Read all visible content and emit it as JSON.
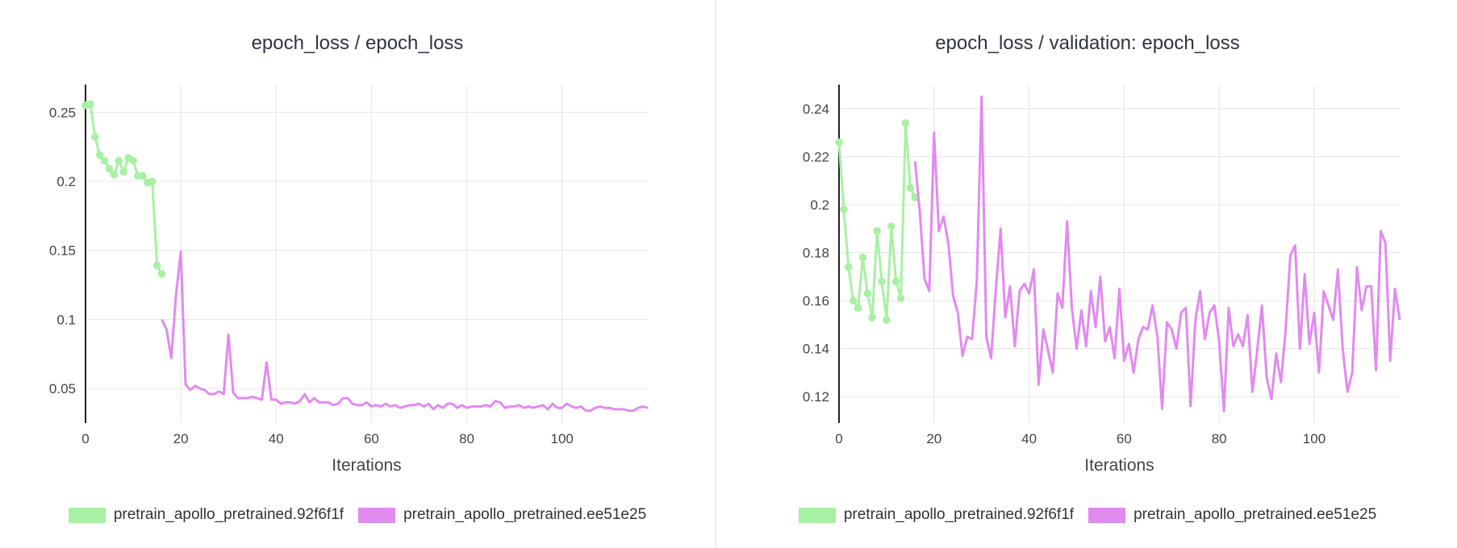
{
  "chart_data": [
    {
      "type": "line",
      "title": "epoch_loss / epoch_loss",
      "xlabel": "Iterations",
      "ylabel": "",
      "xlim": [
        0,
        118
      ],
      "ylim": [
        0.025,
        0.27
      ],
      "xticks": [
        0,
        20,
        40,
        60,
        80,
        100
      ],
      "yticks": [
        0.05,
        0.1,
        0.15,
        0.2,
        0.25
      ],
      "ytick_labels": [
        "0.05",
        "0.1",
        "0.15",
        "0.2",
        "0.25"
      ],
      "grid": true,
      "legend_position": "bottom-center",
      "series": [
        {
          "name": "pretrain_apollo_pretrained.92f6f1f",
          "color": "#a8f0a4",
          "markers": true,
          "x": [
            0,
            1,
            2,
            3,
            4,
            5,
            6,
            7,
            8,
            9,
            10,
            11,
            12,
            13,
            14,
            15,
            16
          ],
          "y": [
            0.255,
            0.256,
            0.232,
            0.219,
            0.215,
            0.209,
            0.205,
            0.215,
            0.207,
            0.217,
            0.215,
            0.204,
            0.204,
            0.199,
            0.2,
            0.139,
            0.133
          ]
        },
        {
          "name": "pretrain_apollo_pretrained.ee51e25",
          "color": "#e18af0",
          "markers": false,
          "x": [
            16,
            17,
            18,
            19,
            20,
            21,
            22,
            23,
            24,
            25,
            26,
            27,
            28,
            29,
            30,
            31,
            32,
            33,
            34,
            35,
            36,
            37,
            38,
            39,
            40,
            41,
            42,
            43,
            44,
            45,
            46,
            47,
            48,
            49,
            50,
            51,
            52,
            53,
            54,
            55,
            56,
            57,
            58,
            59,
            60,
            61,
            62,
            63,
            64,
            65,
            66,
            67,
            68,
            69,
            70,
            71,
            72,
            73,
            74,
            75,
            76,
            77,
            78,
            79,
            80,
            81,
            82,
            83,
            84,
            85,
            86,
            87,
            88,
            89,
            90,
            91,
            92,
            93,
            94,
            95,
            96,
            97,
            98,
            99,
            100,
            101,
            102,
            103,
            104,
            105,
            106,
            107,
            108,
            109,
            110,
            111,
            112,
            113,
            114,
            115,
            116,
            117,
            118
          ],
          "y": [
            0.1,
            0.093,
            0.072,
            0.118,
            0.149,
            0.053,
            0.049,
            0.052,
            0.05,
            0.049,
            0.046,
            0.046,
            0.048,
            0.046,
            0.089,
            0.047,
            0.043,
            0.043,
            0.043,
            0.044,
            0.043,
            0.042,
            0.069,
            0.042,
            0.042,
            0.039,
            0.04,
            0.04,
            0.039,
            0.041,
            0.046,
            0.04,
            0.043,
            0.04,
            0.04,
            0.04,
            0.038,
            0.039,
            0.043,
            0.043,
            0.039,
            0.038,
            0.038,
            0.04,
            0.037,
            0.038,
            0.037,
            0.039,
            0.037,
            0.038,
            0.036,
            0.037,
            0.038,
            0.038,
            0.039,
            0.037,
            0.039,
            0.035,
            0.038,
            0.036,
            0.039,
            0.039,
            0.036,
            0.038,
            0.036,
            0.037,
            0.037,
            0.037,
            0.038,
            0.037,
            0.041,
            0.04,
            0.036,
            0.037,
            0.037,
            0.038,
            0.036,
            0.037,
            0.036,
            0.037,
            0.038,
            0.035,
            0.039,
            0.036,
            0.036,
            0.039,
            0.037,
            0.036,
            0.037,
            0.034,
            0.034,
            0.036,
            0.037,
            0.036,
            0.036,
            0.035,
            0.035,
            0.035,
            0.034,
            0.034,
            0.036,
            0.037,
            0.036
          ]
        }
      ]
    },
    {
      "type": "line",
      "title": "epoch_loss / validation: epoch_loss",
      "xlabel": "Iterations",
      "ylabel": "",
      "xlim": [
        0,
        118
      ],
      "ylim": [
        0.109,
        0.25
      ],
      "xticks": [
        0,
        20,
        40,
        60,
        80,
        100
      ],
      "yticks": [
        0.12,
        0.14,
        0.16,
        0.18,
        0.2,
        0.22,
        0.24
      ],
      "ytick_labels": [
        "0.12",
        "0.14",
        "0.16",
        "0.18",
        "0.2",
        "0.22",
        "0.24"
      ],
      "grid": true,
      "legend_position": "bottom-center",
      "series": [
        {
          "name": "pretrain_apollo_pretrained.92f6f1f",
          "color": "#a8f0a4",
          "markers": true,
          "x": [
            0,
            1,
            2,
            3,
            4,
            5,
            6,
            7,
            8,
            9,
            10,
            11,
            12,
            13,
            14,
            15,
            16
          ],
          "y": [
            0.226,
            0.198,
            0.174,
            0.16,
            0.157,
            0.178,
            0.163,
            0.153,
            0.189,
            0.168,
            0.152,
            0.191,
            0.168,
            0.161,
            0.234,
            0.207,
            0.203
          ]
        },
        {
          "name": "pretrain_apollo_pretrained.ee51e25",
          "color": "#e18af0",
          "markers": false,
          "x": [
            16,
            17,
            18,
            19,
            20,
            21,
            22,
            23,
            24,
            25,
            26,
            27,
            28,
            29,
            30,
            31,
            32,
            33,
            34,
            35,
            36,
            37,
            38,
            39,
            40,
            41,
            42,
            43,
            44,
            45,
            46,
            47,
            48,
            49,
            50,
            51,
            52,
            53,
            54,
            55,
            56,
            57,
            58,
            59,
            60,
            61,
            62,
            63,
            64,
            65,
            66,
            67,
            68,
            69,
            70,
            71,
            72,
            73,
            74,
            75,
            76,
            77,
            78,
            79,
            80,
            81,
            82,
            83,
            84,
            85,
            86,
            87,
            88,
            89,
            90,
            91,
            92,
            93,
            94,
            95,
            96,
            97,
            98,
            99,
            100,
            101,
            102,
            103,
            104,
            105,
            106,
            107,
            108,
            109,
            110,
            111,
            112,
            113,
            114,
            115,
            116,
            117,
            118
          ],
          "y": [
            0.218,
            0.197,
            0.169,
            0.164,
            0.23,
            0.189,
            0.195,
            0.184,
            0.162,
            0.155,
            0.137,
            0.145,
            0.144,
            0.168,
            0.245,
            0.145,
            0.136,
            0.165,
            0.19,
            0.153,
            0.166,
            0.141,
            0.164,
            0.167,
            0.163,
            0.173,
            0.125,
            0.148,
            0.139,
            0.13,
            0.163,
            0.157,
            0.193,
            0.157,
            0.14,
            0.156,
            0.141,
            0.164,
            0.149,
            0.17,
            0.143,
            0.149,
            0.136,
            0.165,
            0.135,
            0.142,
            0.13,
            0.144,
            0.149,
            0.148,
            0.158,
            0.145,
            0.115,
            0.151,
            0.148,
            0.14,
            0.155,
            0.157,
            0.116,
            0.152,
            0.164,
            0.144,
            0.155,
            0.158,
            0.143,
            0.114,
            0.157,
            0.141,
            0.146,
            0.141,
            0.154,
            0.122,
            0.139,
            0.158,
            0.128,
            0.119,
            0.138,
            0.126,
            0.148,
            0.179,
            0.183,
            0.14,
            0.171,
            0.142,
            0.155,
            0.13,
            0.164,
            0.158,
            0.152,
            0.173,
            0.14,
            0.122,
            0.13,
            0.174,
            0.156,
            0.166,
            0.166,
            0.131,
            0.189,
            0.184,
            0.135,
            0.165,
            0.152
          ]
        }
      ]
    }
  ]
}
